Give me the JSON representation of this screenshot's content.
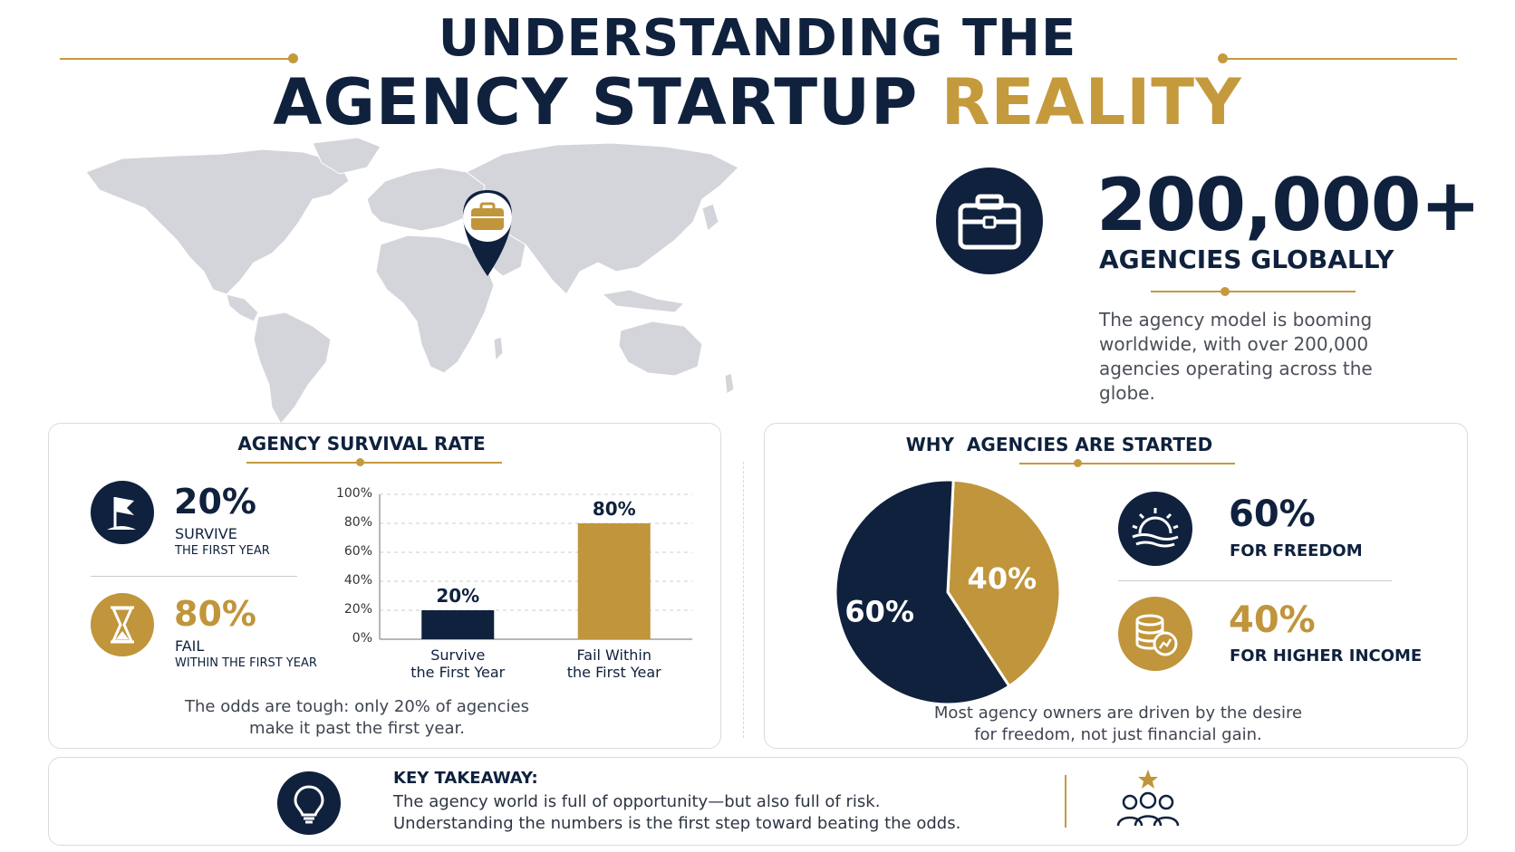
{
  "header": {
    "title_line1": "UNDERSTANDING THE",
    "title_line2_main": "AGENCY STARTUP",
    "title_line2_accent": "REALITY"
  },
  "global_stat": {
    "icon": "briefcase-icon",
    "number": "200,000+",
    "label": "AGENCIES GLOBALLY",
    "description": "The agency model is booming worldwide, with over 200,000 agencies operating across the globe."
  },
  "map": {
    "icon": "map-pin-briefcase-icon"
  },
  "survival": {
    "title": "AGENCY SURVIVAL RATE",
    "stats": [
      {
        "icon": "flag-icon",
        "percent": "20%",
        "line1": "SURVIVE",
        "line2": "THE FIRST YEAR"
      },
      {
        "icon": "hourglass-icon",
        "percent": "80%",
        "line1": "FAIL",
        "line2": "WITHIN THE FIRST YEAR"
      }
    ],
    "caption_line1": "The odds are tough: only 20% of agencies",
    "caption_line2": "make it past the first year."
  },
  "reasons": {
    "title": "WHY  AGENCIES ARE STARTED",
    "items": [
      {
        "icon": "sunrise-icon",
        "percent": "60%",
        "label": "FOR FREEDOM"
      },
      {
        "icon": "coins-icon",
        "percent": "40%",
        "label": "FOR HIGHER INCOME"
      }
    ],
    "caption_line1": "Most agency owners are driven by the desire",
    "caption_line2": "for freedom, not just financial gain."
  },
  "takeaway": {
    "icon": "lightbulb-icon",
    "title": "KEY TAKEAWAY:",
    "line1": "The agency world is full of opportunity—but also full of risk.",
    "line2": "Understanding the numbers is the first step toward beating the odds.",
    "side_icon": "team-star-icon"
  },
  "colors": {
    "navy": "#0f213d",
    "gold": "#c0953b"
  },
  "chart_data": [
    {
      "type": "bar",
      "title": "",
      "categories": [
        "Survive the First Year",
        "Fail Within the First Year"
      ],
      "category_lines": [
        [
          "Survive",
          "the First Year"
        ],
        [
          "Fail Within",
          "the First Year"
        ]
      ],
      "values": [
        20,
        80
      ],
      "value_labels": [
        "20%",
        "80%"
      ],
      "colors": [
        "#0f213d",
        "#c0953b"
      ],
      "ylim": [
        0,
        100
      ],
      "yticks": [
        "0%",
        "20%",
        "40%",
        "60%",
        "80%",
        "100%"
      ],
      "grid": true
    },
    {
      "type": "pie",
      "title": "",
      "labels": [
        "60%",
        "40%"
      ],
      "values": [
        60,
        40
      ],
      "colors": [
        "#0f213d",
        "#c0953b"
      ]
    }
  ]
}
